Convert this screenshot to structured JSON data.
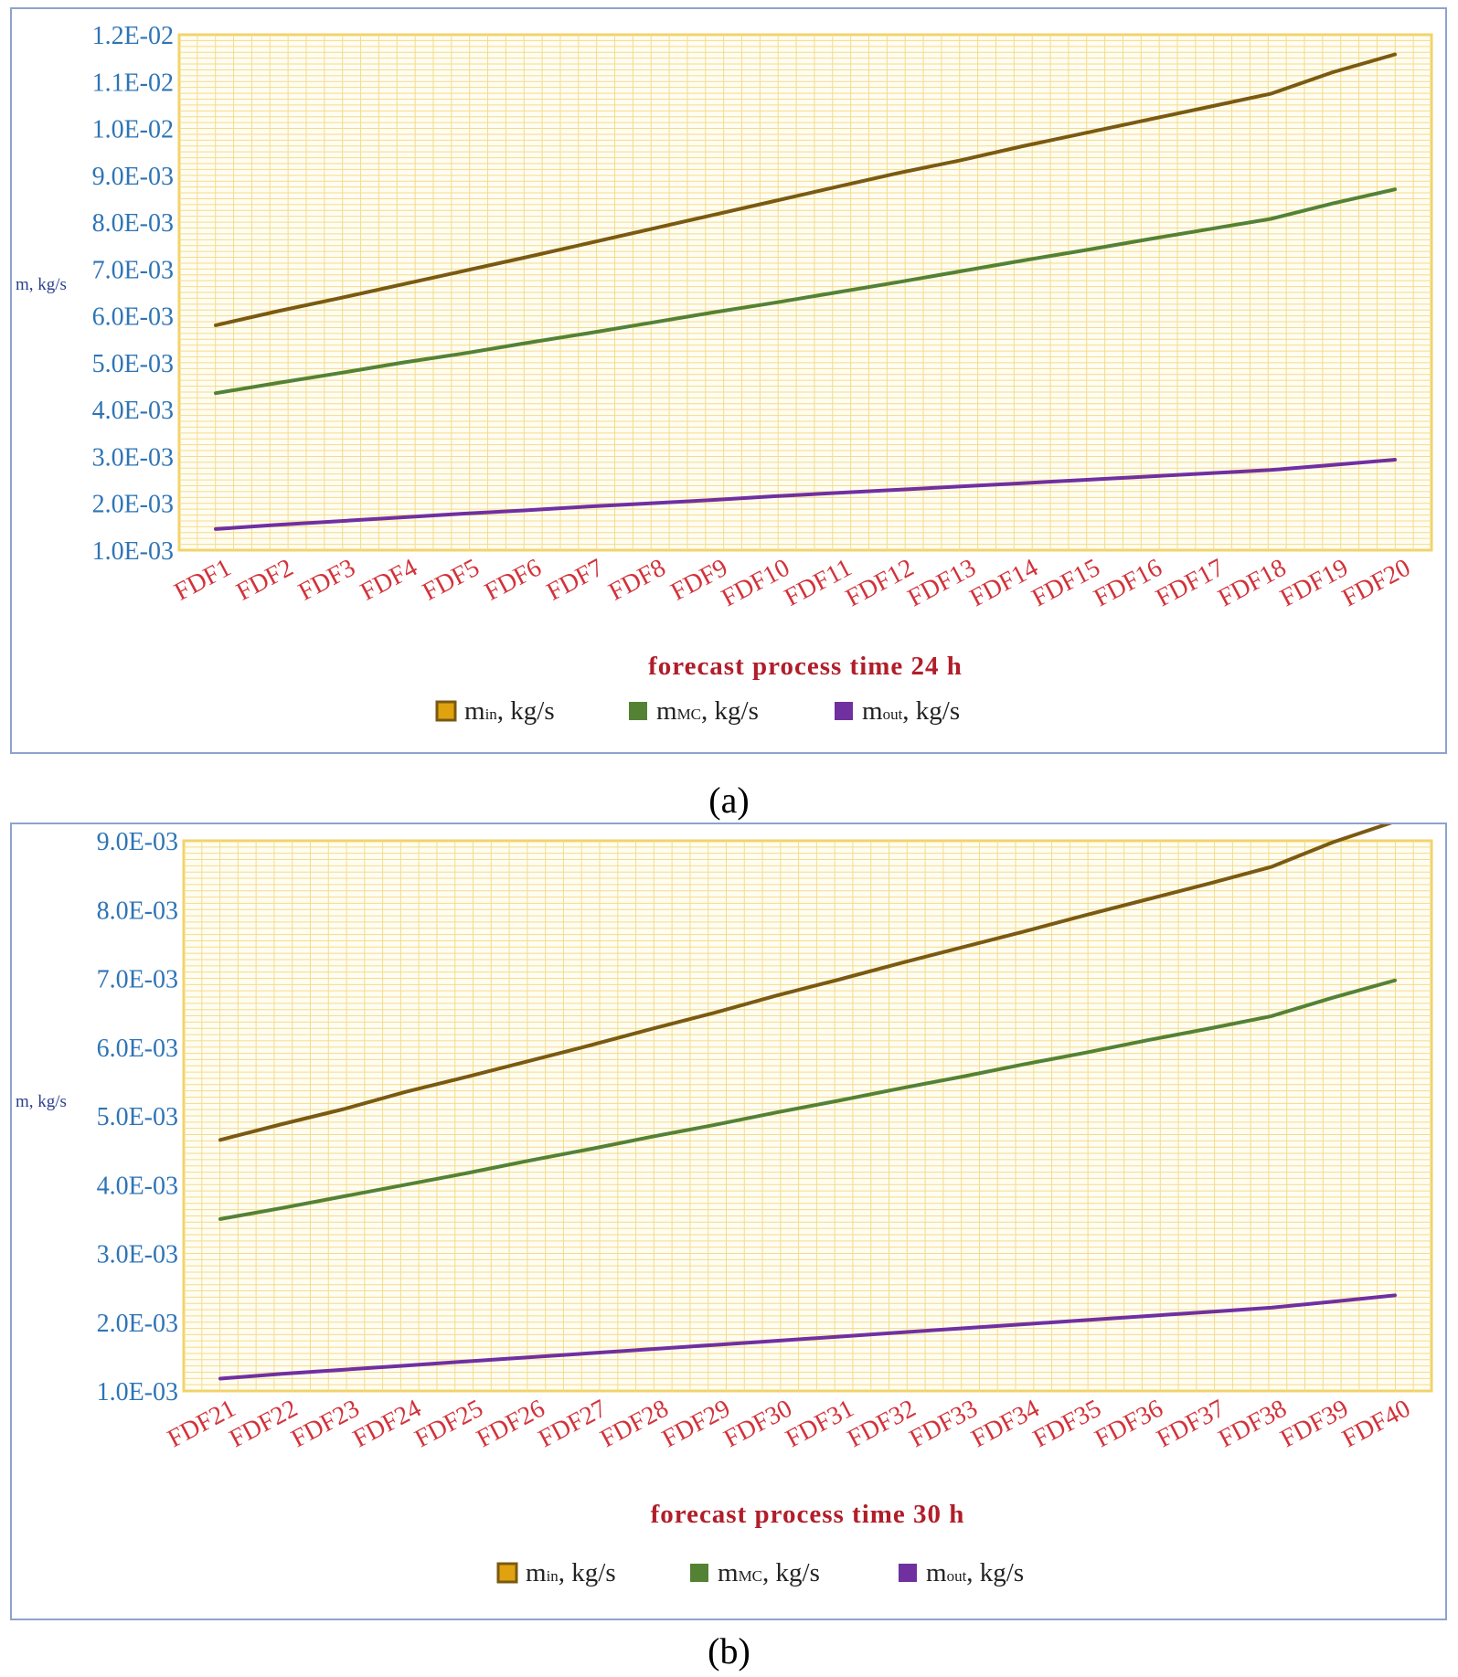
{
  "captions": {
    "a": "(a)",
    "b": "(b)"
  },
  "chart_data": [
    {
      "type": "line",
      "xlabel": "forecast process time 24 h",
      "ylabel": "m, kg/s",
      "ylim": [
        0.001,
        0.012
      ],
      "yticks": [
        "1.0E-03",
        "2.0E-03",
        "3.0E-03",
        "4.0E-03",
        "5.0E-03",
        "6.0E-03",
        "7.0E-03",
        "8.0E-03",
        "9.0E-03",
        "1.0E-02",
        "1.1E-02",
        "1.2E-02"
      ],
      "grid": true,
      "legend_position": "bottom",
      "categories": [
        "FDF1",
        "FDF2",
        "FDF3",
        "FDF4",
        "FDF5",
        "FDF6",
        "FDF7",
        "FDF8",
        "FDF9",
        "FDF10",
        "FDF11",
        "FDF12",
        "FDF13",
        "FDF14",
        "FDF15",
        "FDF16",
        "FDF17",
        "FDF18",
        "FDF19",
        "FDF20"
      ],
      "series": [
        {
          "name": "min, kg/s",
          "name_main": "m",
          "name_sub": "in",
          "name_rest": ", kg/s",
          "color": "#7a5a12",
          "values": [
            0.0058,
            0.0061,
            0.00638,
            0.00667,
            0.00696,
            0.00725,
            0.00755,
            0.00785,
            0.00815,
            0.00845,
            0.00875,
            0.00905,
            0.00932,
            0.00962,
            0.0099,
            0.01018,
            0.01046,
            0.01074,
            0.0112,
            0.01158
          ]
        },
        {
          "name": "mMC, kg/s",
          "name_main": "m",
          "name_sub": "MC",
          "name_rest": ", kg/s",
          "color": "#548235",
          "values": [
            0.00435,
            0.00457,
            0.00478,
            0.005,
            0.0052,
            0.00542,
            0.00563,
            0.00585,
            0.00607,
            0.00628,
            0.0065,
            0.00672,
            0.00695,
            0.00718,
            0.0074,
            0.00763,
            0.00785,
            0.00807,
            0.0084,
            0.0087
          ]
        },
        {
          "name": "mout, kg/s",
          "name_main": "m",
          "name_sub": "out",
          "name_rest": ", kg/s",
          "color": "#7030a0",
          "values": [
            0.00145,
            0.00154,
            0.00162,
            0.0017,
            0.00178,
            0.00185,
            0.00193,
            0.002,
            0.00207,
            0.00215,
            0.00222,
            0.00229,
            0.00236,
            0.00243,
            0.0025,
            0.00257,
            0.00264,
            0.00271,
            0.00282,
            0.00293
          ]
        }
      ]
    },
    {
      "type": "line",
      "xlabel": "forecast process time 30 h",
      "ylabel": "m, kg/s",
      "ylim": [
        0.001,
        0.009
      ],
      "yticks": [
        "1.0E-03",
        "2.0E-03",
        "3.0E-03",
        "4.0E-03",
        "5.0E-03",
        "6.0E-03",
        "7.0E-03",
        "8.0E-03",
        "9.0E-03"
      ],
      "grid": true,
      "legend_position": "bottom",
      "categories": [
        "FDF21",
        "FDF22",
        "FDF23",
        "FDF24",
        "FDF25",
        "FDF26",
        "FDF27",
        "FDF28",
        "FDF29",
        "FDF30",
        "FDF31",
        "FDF32",
        "FDF33",
        "FDF34",
        "FDF35",
        "FDF36",
        "FDF37",
        "FDF38",
        "FDF39",
        "FDF40"
      ],
      "series": [
        {
          "name": "min, kg/s",
          "name_main": "m",
          "name_sub": "in",
          "name_rest": ", kg/s",
          "color": "#7a5a12",
          "values": [
            0.00465,
            0.00488,
            0.0051,
            0.00535,
            0.00557,
            0.0058,
            0.00603,
            0.00627,
            0.0065,
            0.00675,
            0.00698,
            0.00722,
            0.00745,
            0.00768,
            0.00792,
            0.00815,
            0.00838,
            0.00862,
            0.00898,
            0.00928
          ]
        },
        {
          "name": "mMC, kg/s",
          "name_main": "m",
          "name_sub": "MC",
          "name_rest": ", kg/s",
          "color": "#548235",
          "values": [
            0.0035,
            0.00366,
            0.00383,
            0.004,
            0.00417,
            0.00435,
            0.00452,
            0.0047,
            0.00487,
            0.00505,
            0.00522,
            0.0054,
            0.00557,
            0.00575,
            0.00592,
            0.0061,
            0.00627,
            0.00645,
            0.00672,
            0.00697
          ]
        },
        {
          "name": "mout, kg/s",
          "name_main": "m",
          "name_sub": "out",
          "name_rest": ", kg/s",
          "color": "#7030a0",
          "values": [
            0.00118,
            0.00125,
            0.00131,
            0.00137,
            0.00143,
            0.00149,
            0.00155,
            0.00161,
            0.00167,
            0.00173,
            0.00179,
            0.00185,
            0.00191,
            0.00197,
            0.00203,
            0.00209,
            0.00215,
            0.00221,
            0.0023,
            0.00239
          ]
        }
      ]
    }
  ]
}
